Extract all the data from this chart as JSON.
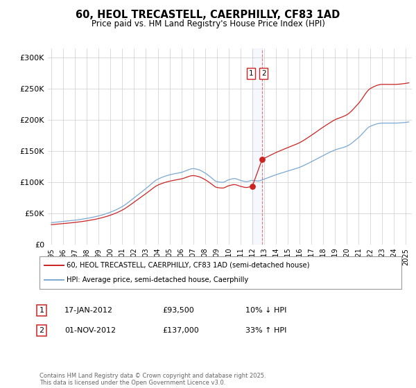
{
  "title": "60, HEOL TRECASTELL, CAERPHILLY, CF83 1AD",
  "subtitle": "Price paid vs. HM Land Registry's House Price Index (HPI)",
  "legend_line1": "60, HEOL TRECASTELL, CAERPHILLY, CF83 1AD (semi-detached house)",
  "legend_line2": "HPI: Average price, semi-detached house, Caerphilly",
  "hpi_color": "#7aa8d2",
  "price_color": "#cc2222",
  "transaction1_year": 2012.04,
  "transaction2_year": 2012.84,
  "transaction1_price": 93500,
  "transaction2_price": 137000,
  "transaction1_date": "17-JAN-2012",
  "transaction2_date": "01-NOV-2012",
  "transaction1_hpi_diff": "10% ↓ HPI",
  "transaction2_hpi_diff": "33% ↑ HPI",
  "ylim": [
    0,
    315000
  ],
  "xlim_start": 1994.7,
  "xlim_end": 2025.5,
  "yticks": [
    0,
    50000,
    100000,
    150000,
    200000,
    250000,
    300000
  ],
  "ytick_labels": [
    "£0",
    "£50K",
    "£100K",
    "£150K",
    "£200K",
    "£250K",
    "£300K"
  ],
  "xticks": [
    1995,
    1996,
    1997,
    1998,
    1999,
    2000,
    2001,
    2002,
    2003,
    2004,
    2005,
    2006,
    2007,
    2008,
    2009,
    2010,
    2011,
    2012,
    2013,
    2014,
    2015,
    2016,
    2017,
    2018,
    2019,
    2020,
    2021,
    2022,
    2023,
    2024,
    2025
  ],
  "footer": "Contains HM Land Registry data © Crown copyright and database right 2025.\nThis data is licensed under the Open Government Licence v3.0.",
  "background_color": "#ffffff",
  "grid_color": "#cccccc"
}
